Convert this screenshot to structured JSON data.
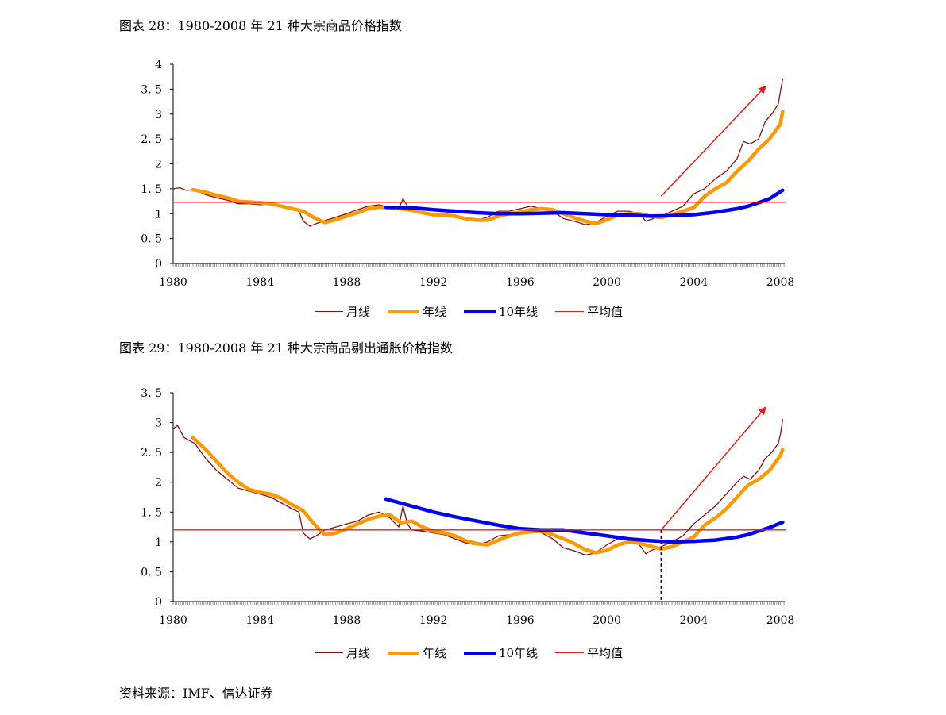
{
  "captions": {
    "chart1": "图表 28：1980-2008 年 21 种大宗商品价格指数",
    "chart2": "图表 29：1980-2008 年 21 种大宗商品剔出通胀价格指数"
  },
  "source": "资料来源：IMF、信达证券",
  "legend": {
    "monthly": "月线",
    "annual": "年线",
    "tenyear": "10年线",
    "average": "平均值"
  },
  "colors": {
    "monthly": "#7b1416",
    "annual": "#ff9900",
    "tenyear": "#0000ee",
    "average": "#e0201b",
    "arrow": "#e0201b"
  },
  "chart_data": [
    {
      "type": "line",
      "title": "图表 28：1980-2008 年 21 种大宗商品价格指数",
      "x_ticks": [
        "1980",
        "1984",
        "1988",
        "1992",
        "1996",
        "2000",
        "2004",
        "2008"
      ],
      "y_ticks": [
        "0",
        "0.5",
        "1",
        "1.5",
        "2",
        "2.5",
        "3",
        "3.5",
        "4"
      ],
      "xlim": [
        1980,
        2008.2
      ],
      "ylim": [
        0,
        4
      ],
      "average": 1.23,
      "arrow": {
        "from": [
          2002.5,
          1.35
        ],
        "to": [
          2007.3,
          3.55
        ]
      },
      "series": [
        {
          "name": "月线",
          "key": "monthly",
          "x": [
            1980.0,
            1980.3,
            1980.6,
            1981.0,
            1981.5,
            1982.0,
            1982.5,
            1983.0,
            1983.5,
            1984.0,
            1984.5,
            1985.0,
            1985.5,
            1985.8,
            1986.0,
            1986.3,
            1986.6,
            1987.0,
            1987.5,
            1988.0,
            1988.5,
            1989.0,
            1989.5,
            1990.0,
            1990.4,
            1990.6,
            1990.8,
            1991.0,
            1991.5,
            1992.0,
            1992.5,
            1993.0,
            1993.5,
            1994.0,
            1994.5,
            1995.0,
            1995.5,
            1996.0,
            1996.5,
            1997.0,
            1997.5,
            1998.0,
            1998.5,
            1999.0,
            1999.3,
            1999.6,
            2000.0,
            2000.5,
            2001.0,
            2001.5,
            2001.8,
            2002.0,
            2002.5,
            2003.0,
            2003.5,
            2004.0,
            2004.5,
            2005.0,
            2005.5,
            2006.0,
            2006.3,
            2006.6,
            2007.0,
            2007.3,
            2007.6,
            2007.9,
            2008.0,
            2008.1
          ],
          "y": [
            1.5,
            1.52,
            1.47,
            1.48,
            1.38,
            1.32,
            1.27,
            1.2,
            1.2,
            1.18,
            1.2,
            1.15,
            1.1,
            1.05,
            0.85,
            0.75,
            0.8,
            0.86,
            0.93,
            1.0,
            1.08,
            1.15,
            1.18,
            1.12,
            1.1,
            1.3,
            1.15,
            1.07,
            1.03,
            1.0,
            1.0,
            0.97,
            0.9,
            0.87,
            0.93,
            1.05,
            1.05,
            1.1,
            1.15,
            1.1,
            1.05,
            0.9,
            0.85,
            0.78,
            0.8,
            0.85,
            0.95,
            1.05,
            1.05,
            1.0,
            0.85,
            0.88,
            0.95,
            1.05,
            1.15,
            1.4,
            1.5,
            1.7,
            1.85,
            2.1,
            2.45,
            2.4,
            2.5,
            2.85,
            3.0,
            3.2,
            3.45,
            3.7
          ]
        },
        {
          "name": "年线",
          "key": "annual",
          "x": [
            1980.9,
            1981.5,
            1982.0,
            1982.5,
            1983.0,
            1984.0,
            1984.5,
            1985.0,
            1985.5,
            1986.0,
            1986.5,
            1987.0,
            1987.5,
            1988.0,
            1988.5,
            1989.0,
            1989.5,
            1990.0,
            1990.5,
            1991.0,
            1991.5,
            1992.0,
            1992.5,
            1993.0,
            1993.5,
            1994.0,
            1994.5,
            1995.0,
            1995.5,
            1996.0,
            1996.5,
            1997.0,
            1997.5,
            1998.0,
            1998.5,
            1999.0,
            1999.5,
            2000.0,
            2000.5,
            2001.0,
            2001.5,
            2002.0,
            2002.5,
            2003.0,
            2003.5,
            2004.0,
            2004.5,
            2005.0,
            2005.5,
            2006.0,
            2006.5,
            2007.0,
            2007.5,
            2008.0,
            2008.1
          ],
          "y": [
            1.48,
            1.43,
            1.37,
            1.32,
            1.25,
            1.22,
            1.2,
            1.15,
            1.1,
            1.05,
            0.92,
            0.82,
            0.88,
            0.95,
            1.02,
            1.1,
            1.13,
            1.12,
            1.1,
            1.07,
            1.02,
            0.98,
            0.97,
            0.95,
            0.9,
            0.87,
            0.87,
            0.95,
            1.0,
            1.03,
            1.08,
            1.1,
            1.08,
            1.0,
            0.92,
            0.85,
            0.8,
            0.88,
            0.97,
            1.0,
            1.0,
            0.95,
            0.92,
            0.98,
            1.05,
            1.12,
            1.35,
            1.5,
            1.62,
            1.85,
            2.05,
            2.3,
            2.5,
            2.8,
            3.05
          ]
        },
        {
          "name": "10年线",
          "key": "tenyear",
          "x": [
            1989.8,
            1991.0,
            1992.0,
            1993.0,
            1994.0,
            1995.0,
            1996.0,
            1997.0,
            1998.0,
            1999.0,
            2000.0,
            2001.0,
            2002.0,
            2003.0,
            2004.0,
            2005.0,
            2006.0,
            2006.5,
            2007.0,
            2007.5,
            2008.1
          ],
          "y": [
            1.13,
            1.12,
            1.08,
            1.05,
            1.02,
            1.0,
            1.0,
            1.01,
            1.02,
            1.0,
            0.98,
            0.97,
            0.95,
            0.96,
            0.98,
            1.03,
            1.1,
            1.15,
            1.22,
            1.3,
            1.47
          ]
        }
      ]
    },
    {
      "type": "line",
      "title": "图表 29：1980-2008 年 21 种大宗商品剔出通胀价格指数",
      "x_ticks": [
        "1980",
        "1984",
        "1988",
        "1992",
        "1996",
        "2000",
        "2004",
        "2008"
      ],
      "y_ticks": [
        "0",
        "0.5",
        "1",
        "1.5",
        "2",
        "2.5",
        "3",
        "3.5"
      ],
      "xlim": [
        1980,
        2008.2
      ],
      "ylim": [
        0,
        3.5
      ],
      "average": 1.2,
      "vline": 2002.5,
      "arrow": {
        "from": [
          2002.5,
          1.2
        ],
        "to": [
          2007.3,
          3.25
        ]
      },
      "series": [
        {
          "name": "月线",
          "key": "monthly",
          "x": [
            1980.0,
            1980.2,
            1980.5,
            1981.0,
            1981.5,
            1982.0,
            1982.5,
            1983.0,
            1983.5,
            1984.0,
            1984.5,
            1985.0,
            1985.5,
            1985.8,
            1986.0,
            1986.3,
            1986.6,
            1987.0,
            1987.5,
            1988.0,
            1988.5,
            1989.0,
            1989.5,
            1990.0,
            1990.4,
            1990.6,
            1990.8,
            1991.0,
            1991.5,
            1992.0,
            1992.5,
            1993.0,
            1993.5,
            1994.0,
            1994.5,
            1995.0,
            1995.5,
            1996.0,
            1996.5,
            1997.0,
            1997.5,
            1998.0,
            1998.5,
            1999.0,
            1999.3,
            1999.6,
            2000.0,
            2000.5,
            2001.0,
            2001.5,
            2001.8,
            2002.0,
            2002.5,
            2003.0,
            2003.5,
            2004.0,
            2004.5,
            2005.0,
            2005.5,
            2006.0,
            2006.3,
            2006.6,
            2007.0,
            2007.3,
            2007.6,
            2007.9,
            2008.0,
            2008.1
          ],
          "y": [
            2.9,
            2.95,
            2.75,
            2.65,
            2.4,
            2.2,
            2.05,
            1.9,
            1.85,
            1.8,
            1.75,
            1.65,
            1.55,
            1.5,
            1.15,
            1.05,
            1.1,
            1.2,
            1.25,
            1.3,
            1.35,
            1.45,
            1.5,
            1.4,
            1.25,
            1.6,
            1.3,
            1.2,
            1.18,
            1.15,
            1.12,
            1.05,
            0.98,
            0.95,
            1.0,
            1.1,
            1.12,
            1.15,
            1.2,
            1.15,
            1.05,
            0.9,
            0.85,
            0.78,
            0.8,
            0.85,
            0.95,
            1.05,
            1.05,
            0.95,
            0.8,
            0.85,
            0.92,
            1.0,
            1.1,
            1.3,
            1.45,
            1.6,
            1.8,
            2.0,
            2.1,
            2.05,
            2.2,
            2.4,
            2.5,
            2.65,
            2.8,
            3.05
          ]
        },
        {
          "name": "年线",
          "key": "annual",
          "x": [
            1980.9,
            1981.5,
            1982.0,
            1982.5,
            1983.0,
            1983.5,
            1984.0,
            1984.5,
            1985.0,
            1985.5,
            1986.0,
            1986.5,
            1987.0,
            1987.5,
            1988.0,
            1988.5,
            1989.0,
            1989.5,
            1990.0,
            1990.5,
            1991.0,
            1991.5,
            1992.0,
            1992.5,
            1993.0,
            1993.5,
            1994.0,
            1994.5,
            1995.0,
            1995.5,
            1996.0,
            1996.5,
            1997.0,
            1997.5,
            1998.0,
            1998.5,
            1999.0,
            1999.5,
            2000.0,
            2000.5,
            2001.0,
            2001.5,
            2002.0,
            2002.5,
            2003.0,
            2003.5,
            2004.0,
            2004.5,
            2005.0,
            2005.5,
            2006.0,
            2006.5,
            2007.0,
            2007.5,
            2008.0,
            2008.1
          ],
          "y": [
            2.75,
            2.55,
            2.35,
            2.15,
            2.0,
            1.88,
            1.83,
            1.8,
            1.73,
            1.62,
            1.52,
            1.3,
            1.12,
            1.15,
            1.22,
            1.3,
            1.38,
            1.43,
            1.45,
            1.32,
            1.35,
            1.25,
            1.18,
            1.15,
            1.1,
            1.02,
            0.97,
            0.95,
            1.03,
            1.1,
            1.15,
            1.17,
            1.18,
            1.12,
            1.05,
            0.97,
            0.87,
            0.82,
            0.86,
            0.95,
            1.0,
            0.98,
            0.93,
            0.88,
            0.92,
            1.0,
            1.08,
            1.28,
            1.4,
            1.55,
            1.75,
            1.95,
            2.05,
            2.2,
            2.45,
            2.55
          ]
        },
        {
          "name": "10年线",
          "key": "tenyear",
          "x": [
            1989.8,
            1990.5,
            1991.0,
            1992.0,
            1993.0,
            1994.0,
            1995.0,
            1996.0,
            1997.0,
            1998.0,
            1999.0,
            2000.0,
            2001.0,
            2002.0,
            2003.0,
            2004.0,
            2005.0,
            2006.0,
            2006.5,
            2007.0,
            2007.5,
            2008.1
          ],
          "y": [
            1.72,
            1.65,
            1.6,
            1.5,
            1.42,
            1.35,
            1.28,
            1.22,
            1.2,
            1.2,
            1.15,
            1.1,
            1.05,
            1.02,
            1.0,
            1.01,
            1.03,
            1.08,
            1.12,
            1.18,
            1.24,
            1.33
          ]
        }
      ]
    }
  ]
}
